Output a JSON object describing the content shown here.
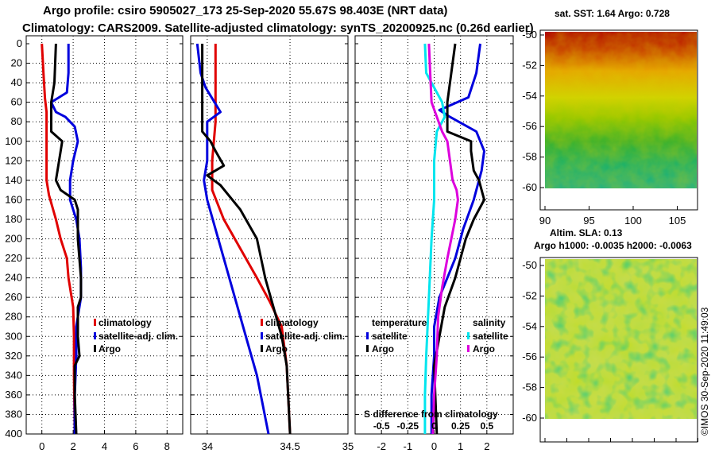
{
  "titles": {
    "line1": "Argo profile: csiro 5905027_173 25-Sep-2020 55.67S 98.403E (NRT data)",
    "line2": "Climatology: CARS2009. Satellite-adjusted climatology: synTS_20200925.nc (0.26d earlier)"
  },
  "depth_ticks": [
    "0",
    "20",
    "40",
    "60",
    "80",
    "100",
    "120",
    "140",
    "160",
    "180",
    "200",
    "220",
    "240",
    "260",
    "280",
    "300",
    "320",
    "340",
    "360",
    "380",
    "400"
  ],
  "colors": {
    "climatology": "#e00000",
    "satellite": "#0000dd",
    "argo": "#000000",
    "sat_salinity": "#00e5ee",
    "argo_salinity": "#dd00dd"
  },
  "chart_data": [
    {
      "type": "line",
      "name": "temperature-profile",
      "xlim": [
        -1,
        9
      ],
      "ylim": [
        0,
        400
      ],
      "xticks": [
        0,
        2,
        4,
        6,
        8
      ],
      "xtick_labels": [
        "0",
        "2",
        "4",
        "6",
        "8"
      ],
      "grid": true,
      "y_inverted": true,
      "legend": [
        "climatology",
        "satellite-adj. clim.",
        "Argo"
      ],
      "series": [
        {
          "name": "climatology",
          "color_key": "climatology",
          "points": [
            [
              0.0,
              0
            ],
            [
              0.1,
              30
            ],
            [
              0.2,
              56
            ],
            [
              0.3,
              70
            ],
            [
              0.3,
              100
            ],
            [
              0.3,
              140
            ],
            [
              0.45,
              155
            ],
            [
              0.9,
              180
            ],
            [
              1.2,
              200
            ],
            [
              1.6,
              220
            ],
            [
              1.7,
              240
            ],
            [
              2.0,
              270
            ],
            [
              2.05,
              300
            ],
            [
              2.05,
              340
            ],
            [
              2.1,
              400
            ]
          ]
        },
        {
          "name": "satellite-adj. clim.",
          "color_key": "satellite",
          "points": [
            [
              1.7,
              0
            ],
            [
              1.7,
              30
            ],
            [
              1.6,
              50
            ],
            [
              0.6,
              60
            ],
            [
              0.9,
              70
            ],
            [
              1.5,
              75
            ],
            [
              2.1,
              85
            ],
            [
              2.3,
              100
            ],
            [
              2.0,
              120
            ],
            [
              1.8,
              140
            ],
            [
              1.8,
              160
            ],
            [
              2.2,
              180
            ],
            [
              2.4,
              200
            ],
            [
              2.5,
              230
            ],
            [
              2.5,
              260
            ],
            [
              2.2,
              290
            ],
            [
              2.2,
              320
            ],
            [
              2.1,
              360
            ],
            [
              2.1,
              400
            ]
          ]
        },
        {
          "name": "Argo",
          "color_key": "argo",
          "points": [
            [
              0.9,
              0
            ],
            [
              0.8,
              40
            ],
            [
              0.6,
              60
            ],
            [
              0.6,
              90
            ],
            [
              1.3,
              100
            ],
            [
              1.0,
              130
            ],
            [
              0.9,
              140
            ],
            [
              1.2,
              150
            ],
            [
              2.1,
              160
            ],
            [
              2.3,
              170
            ],
            [
              2.3,
              200
            ],
            [
              2.5,
              240
            ],
            [
              2.5,
              260
            ],
            [
              2.3,
              270
            ],
            [
              2.3,
              300
            ],
            [
              2.4,
              320
            ],
            [
              2.1,
              330
            ],
            [
              2.1,
              360
            ],
            [
              2.2,
              400
            ]
          ]
        }
      ]
    },
    {
      "type": "line",
      "name": "salinity-profile",
      "xlim": [
        33.9,
        34.85
      ],
      "ylim": [
        0,
        400
      ],
      "xticks": [
        34,
        34.5,
        34.85
      ],
      "xtick_labels": [
        "34",
        "34.5",
        "35"
      ],
      "grid": true,
      "y_inverted": true,
      "legend": [
        "climatology",
        "satellite-adj. clim.",
        "Argo"
      ],
      "series": [
        {
          "name": "climatology",
          "color_key": "climatology",
          "points": [
            [
              34.05,
              0
            ],
            [
              34.05,
              40
            ],
            [
              34.05,
              80
            ],
            [
              34.03,
              120
            ],
            [
              34.03,
              150
            ],
            [
              34.1,
              180
            ],
            [
              34.2,
              210
            ],
            [
              34.3,
              240
            ],
            [
              34.38,
              265
            ],
            [
              34.45,
              290
            ],
            [
              34.48,
              330
            ],
            [
              34.5,
              400
            ]
          ]
        },
        {
          "name": "satellite-adj. clim.",
          "color_key": "satellite",
          "points": [
            [
              33.94,
              0
            ],
            [
              33.96,
              30
            ],
            [
              33.99,
              45
            ],
            [
              34.08,
              70
            ],
            [
              34.0,
              80
            ],
            [
              34.0,
              120
            ],
            [
              33.98,
              140
            ],
            [
              34.0,
              160
            ],
            [
              34.1,
              220
            ],
            [
              34.2,
              280
            ],
            [
              34.3,
              340
            ],
            [
              34.37,
              400
            ]
          ]
        },
        {
          "name": "Argo",
          "color_key": "argo",
          "points": [
            [
              33.97,
              0
            ],
            [
              33.97,
              40
            ],
            [
              33.97,
              90
            ],
            [
              34.02,
              100
            ],
            [
              34.05,
              110
            ],
            [
              34.1,
              125
            ],
            [
              34.0,
              135
            ],
            [
              34.08,
              145
            ],
            [
              34.2,
              170
            ],
            [
              34.3,
              200
            ],
            [
              34.35,
              240
            ],
            [
              34.4,
              270
            ],
            [
              34.45,
              300
            ],
            [
              34.48,
              330
            ],
            [
              34.5,
              400
            ]
          ]
        }
      ]
    },
    {
      "type": "line",
      "name": "difference-from-climatology",
      "xlim": [
        -3,
        3
      ],
      "ylim": [
        0,
        400
      ],
      "xticks": [
        -2,
        -1,
        0,
        1,
        2
      ],
      "xtick_labels": [
        "-2",
        "-1",
        "0",
        "1",
        "2"
      ],
      "grid": true,
      "y_inverted": true,
      "annotation": "S difference from climatology",
      "secondary_ticks": [
        -0.5,
        -0.25,
        0,
        0.25,
        0.5
      ],
      "secondary_tick_labels": [
        "-0.5",
        "-0.25",
        "0",
        "0.25",
        "0.5"
      ],
      "legend_temperature": {
        "title": "temperature",
        "items": [
          "satellite",
          "Argo"
        ]
      },
      "legend_salinity": {
        "title": "salinity",
        "items": [
          "satellite",
          "Argo"
        ]
      },
      "series": [
        {
          "name": "temperature satellite",
          "color_key": "satellite",
          "points": [
            [
              1.75,
              0
            ],
            [
              1.6,
              30
            ],
            [
              1.3,
              55
            ],
            [
              0.2,
              68
            ],
            [
              0.6,
              75
            ],
            [
              1.6,
              90
            ],
            [
              1.9,
              110
            ],
            [
              1.8,
              130
            ],
            [
              1.5,
              160
            ],
            [
              1.1,
              190
            ],
            [
              0.8,
              220
            ],
            [
              0.2,
              260
            ],
            [
              0.0,
              290
            ],
            [
              0.0,
              320
            ],
            [
              -0.1,
              360
            ],
            [
              -0.1,
              400
            ]
          ]
        },
        {
          "name": "temperature Argo",
          "color_key": "argo",
          "points": [
            [
              0.8,
              0
            ],
            [
              0.6,
              40
            ],
            [
              0.5,
              60
            ],
            [
              0.5,
              90
            ],
            [
              1.4,
              100
            ],
            [
              1.4,
              110
            ],
            [
              1.5,
              130
            ],
            [
              1.7,
              140
            ],
            [
              1.9,
              160
            ],
            [
              1.5,
              180
            ],
            [
              1.2,
              200
            ],
            [
              0.8,
              240
            ],
            [
              0.4,
              270
            ],
            [
              0.2,
              300
            ],
            [
              0.0,
              330
            ],
            [
              0.1,
              400
            ]
          ]
        },
        {
          "name": "salinity satellite",
          "color_key": "sat_salinity",
          "points": [
            [
              -0.35,
              0
            ],
            [
              -0.3,
              30
            ],
            [
              0.3,
              60
            ],
            [
              0.4,
              75
            ],
            [
              0.1,
              90
            ],
            [
              0.0,
              120
            ],
            [
              0.0,
              160
            ],
            [
              -0.1,
              200
            ],
            [
              -0.2,
              260
            ],
            [
              -0.3,
              320
            ],
            [
              -0.35,
              360
            ],
            [
              -0.35,
              400
            ]
          ]
        },
        {
          "name": "salinity Argo",
          "color_key": "argo_salinity",
          "points": [
            [
              -0.2,
              0
            ],
            [
              -0.15,
              30
            ],
            [
              -0.1,
              60
            ],
            [
              0.3,
              90
            ],
            [
              0.5,
              100
            ],
            [
              0.6,
              120
            ],
            [
              0.7,
              140
            ],
            [
              0.85,
              150
            ],
            [
              0.9,
              160
            ],
            [
              0.8,
              180
            ],
            [
              0.5,
              220
            ],
            [
              0.3,
              250
            ],
            [
              0.15,
              280
            ],
            [
              0.1,
              320
            ],
            [
              0.0,
              360
            ],
            [
              -0.05,
              400
            ]
          ]
        }
      ]
    }
  ],
  "maps": [
    {
      "name": "sst-map",
      "title": "sat. SST: 1.64 Argo: 0.728",
      "y_ticks": [
        "-50",
        "-52",
        "-54",
        "-56",
        "-58",
        "-60"
      ],
      "x_ticks": [
        "90",
        "95",
        "100",
        "105"
      ]
    },
    {
      "name": "sla-map",
      "title_line1": "Altim. SLA: 0.13",
      "title_line2": "Argo h1000: -0.0035 h2000: -0.0063",
      "y_ticks": [
        "-50",
        "-52",
        "-54",
        "-56",
        "-58",
        "-60"
      ]
    }
  ],
  "stamp": "©IMOS 30-Sep-2020 11:49:03"
}
